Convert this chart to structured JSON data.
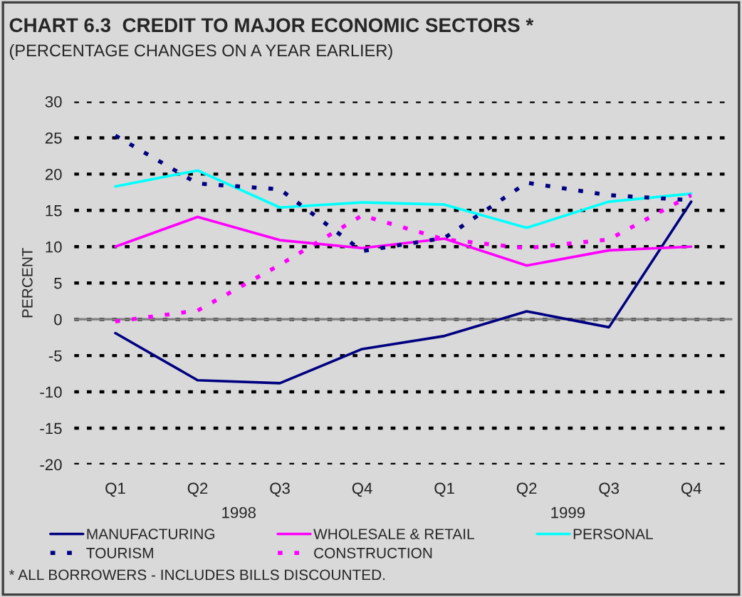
{
  "chart_data": {
    "type": "line",
    "title": "CHART 6.3  CREDIT TO MAJOR ECONOMIC SECTORS *",
    "subtitle": "(PERCENTAGE CHANGES ON A YEAR EARLIER)",
    "ylabel": "PERCENT",
    "categories": [
      "Q1",
      "Q2",
      "Q3",
      "Q4",
      "Q1",
      "Q2",
      "Q3",
      "Q4"
    ],
    "series": [
      {
        "name": "MANUFACTURING",
        "color": "#000080",
        "line_style": "solid",
        "values": [
          -1.9,
          -8.4,
          -8.8,
          -4.1,
          -2.3,
          1.1,
          -1.1,
          16.2
        ]
      },
      {
        "name": "WHOLESALE & RETAIL",
        "color": "#ff00ff",
        "line_style": "solid",
        "values": [
          10,
          14.1,
          10.9,
          9.8,
          11.1,
          7.4,
          9.5,
          10
        ]
      },
      {
        "name": "PERSONAL",
        "color": "#00ffff",
        "line_style": "solid",
        "values": [
          18.3,
          20.5,
          15.4,
          16.1,
          15.8,
          12.6,
          16.2,
          17.3
        ]
      },
      {
        "name": "TOURISM",
        "color": "#000080",
        "line_style": "dotted",
        "values": [
          25.3,
          18.7,
          17.9,
          9.4,
          11.2,
          18.8,
          17.1,
          16.4
        ]
      },
      {
        "name": "CONSTRUCTION",
        "color": "#ff00ff",
        "line_style": "dotted",
        "values": [
          -0.3,
          1.2,
          7.5,
          14.3,
          11,
          9.8,
          11,
          17.1
        ]
      }
    ],
    "ylim": [
      -20,
      30
    ],
    "yticks": [
      -20,
      -15,
      -10,
      -5,
      0,
      5,
      10,
      15,
      20,
      25,
      30
    ],
    "grid": "y",
    "legend": "bottom",
    "marker": "none",
    "ref_lines": [
      {
        "axis": "y",
        "value": 0,
        "color": "#808080",
        "line_style": "solid"
      }
    ],
    "annotations": [
      "1998",
      "1999",
      "* ALL BORROWERS - INCLUDES BILLS DISCOUNTED."
    ]
  }
}
